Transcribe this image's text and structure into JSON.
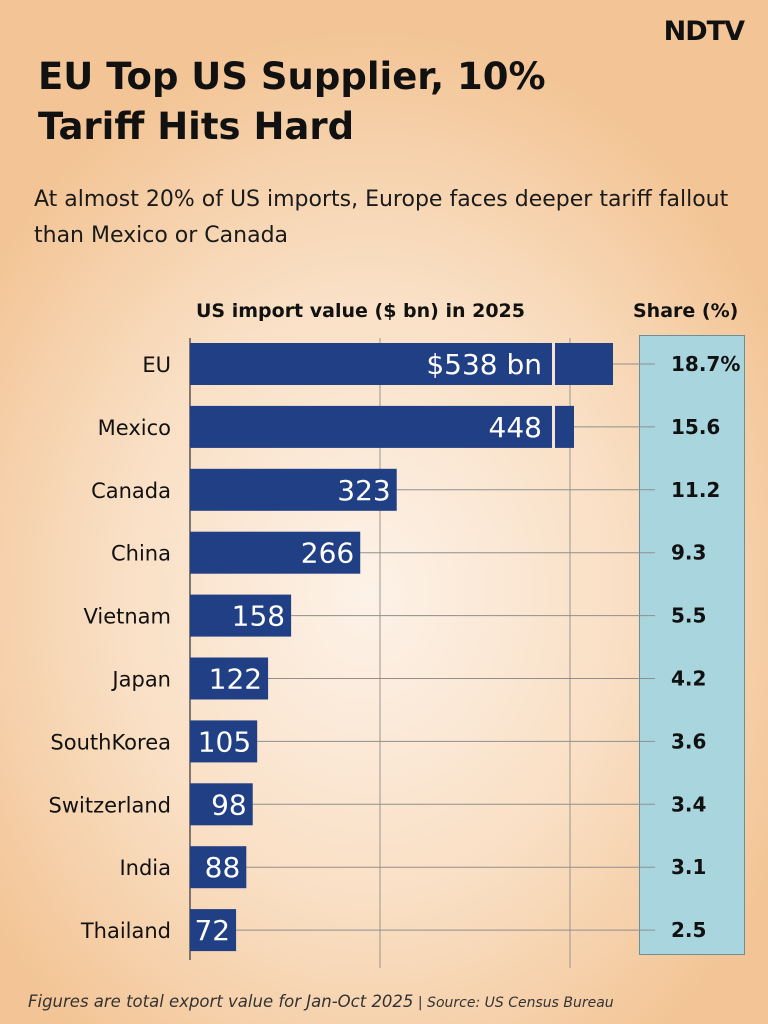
{
  "brand": {
    "logo": "NDTV"
  },
  "header": {
    "title": "EU Top US Supplier, 10% Tariff Hits Hard",
    "subtitle": "At almost 20% of US imports, Europe faces deeper tariff fallout than Mexico or Canada"
  },
  "footer": {
    "note": "Figures are total export value for Jan-Oct 2025",
    "source": " | Source: US Census Bureau"
  },
  "colors": {
    "bar": "#213f85",
    "share_panel": "#a9d6de"
  },
  "chart_data": {
    "type": "bar",
    "orientation": "horizontal",
    "title": "US import value ($ bn) in 2025",
    "share_header": "Share (%)",
    "categories": [
      "EU",
      "Mexico",
      "Canada",
      "China",
      "Vietnam",
      "Japan",
      "SouthKorea",
      "Switzerland",
      "India",
      "Thailand"
    ],
    "values": [
      538,
      448,
      323,
      266,
      158,
      122,
      105,
      98,
      88,
      72
    ],
    "value_labels": [
      "$538 bn",
      "448",
      "323",
      "266",
      "158",
      "122",
      "105",
      "98",
      "88",
      "72"
    ],
    "share_labels": [
      "18.7%",
      "15.6",
      "11.2",
      "9.3",
      "5.5",
      "4.2",
      "3.6",
      "3.4",
      "3.1",
      "2.5"
    ],
    "broken_axis_for": [
      "EU",
      "Mexico"
    ],
    "xlim": [
      0,
      560
    ],
    "grid": true
  }
}
